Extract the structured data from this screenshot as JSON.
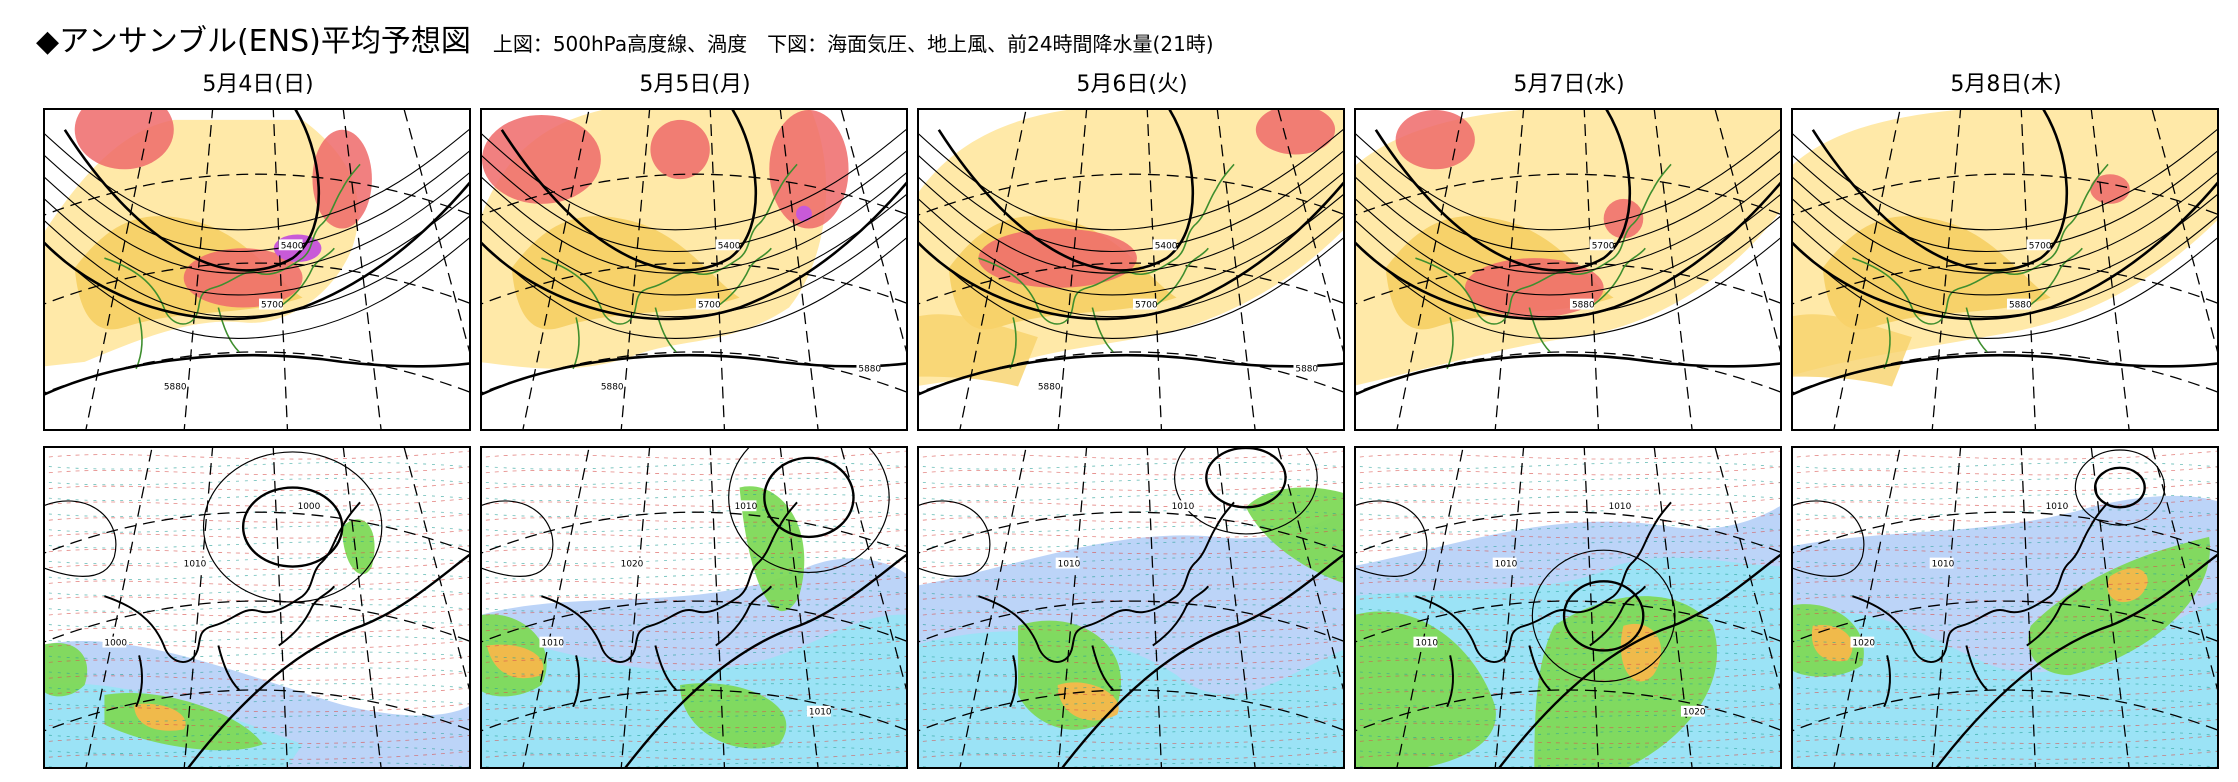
{
  "header": {
    "title": "◆アンサンブル(ENS)平均予想図",
    "subtitle": "上図：500hPa高度線、渦度　下図：海面気圧、地上風、前24時間降水量(21時)"
  },
  "days": [
    {
      "label": "5月4日(日)",
      "upper": {
        "contours": [
          "5400",
          "5700",
          "5880"
        ]
      },
      "lower": {
        "isobars": [
          "1000",
          "1010",
          "1000"
        ]
      }
    },
    {
      "label": "5月5日(月)",
      "upper": {
        "contours": [
          "5400",
          "5700",
          "5880",
          "5880"
        ]
      },
      "lower": {
        "isobars": [
          "1010",
          "1020",
          "1010",
          "1010"
        ]
      }
    },
    {
      "label": "5月6日(火)",
      "upper": {
        "contours": [
          "5400",
          "5700",
          "5880",
          "5880"
        ]
      },
      "lower": {
        "isobars": [
          "1010",
          "1010"
        ]
      }
    },
    {
      "label": "5月7日(水)",
      "upper": {
        "contours": [
          "5700",
          "5880"
        ]
      },
      "lower": {
        "isobars": [
          "1010",
          "1010",
          "1010",
          "1020"
        ]
      }
    },
    {
      "label": "5月8日(木)",
      "upper": {
        "contours": [
          "5700",
          "5880"
        ]
      },
      "lower": {
        "isobars": [
          "1010",
          "1010",
          "1020"
        ]
      }
    }
  ],
  "colors": {
    "vorticity_low": "#f7d26a",
    "vorticity_mid": "#ffe9a8",
    "vorticity_high": "#ee6a6a",
    "vorticity_peak": "#c85ad8",
    "coast": "#3e8e2e",
    "precip_light": "#b8d2f8",
    "precip_blue": "#99e4f5",
    "precip_green": "#7ed957",
    "precip_orange": "#f6b84a"
  }
}
